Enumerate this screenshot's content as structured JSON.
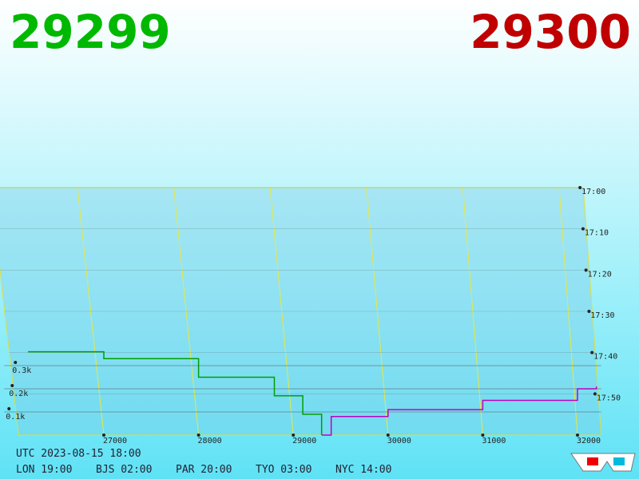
{
  "chart_data": {
    "type": "depth3d",
    "bid_price": "29299",
    "ask_price": "29300",
    "xticks": [
      27000,
      28000,
      29000,
      30000,
      31000,
      32000
    ],
    "zticks": [
      {
        "value": 100,
        "label": "0.1k"
      },
      {
        "value": 200,
        "label": "0.2k"
      },
      {
        "value": 300,
        "label": "0.3k"
      }
    ],
    "time_ticks": [
      "17:00",
      "17:10",
      "17:20",
      "17:30",
      "17:40",
      "17:50"
    ],
    "series": [
      {
        "color": "#00a000",
        "x": [
          26200,
          27000,
          28000,
          28800,
          29100,
          29299
        ],
        "values": [
          360,
          330,
          250,
          170,
          90,
          0
        ]
      },
      {
        "color": "#c000c0",
        "x": [
          29300,
          29400,
          30000,
          31000,
          32000,
          32200
        ],
        "values": [
          0,
          80,
          110,
          150,
          200,
          210
        ]
      }
    ],
    "footer": {
      "utc": "UTC 2023-08-15 18:00",
      "zones": [
        "LON 19:00",
        "BJS 02:00",
        "PAR 20:00",
        "TYO 03:00",
        "NYC 14:00"
      ]
    }
  }
}
